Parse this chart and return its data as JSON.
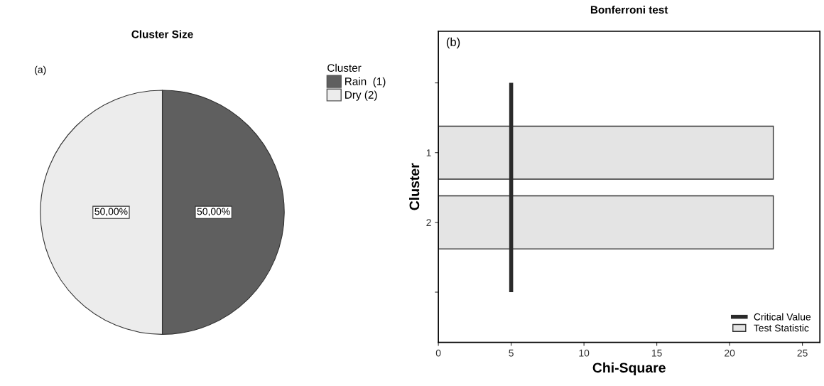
{
  "chart_data": [
    {
      "type": "pie",
      "title": "Cluster Size",
      "legend_title": "Cluster",
      "legend": "right",
      "categories": [
        "Rain  (1)",
        "Dry (2)"
      ],
      "values": [
        50,
        50
      ],
      "colors": [
        "#5f5f5f",
        "#ececec"
      ],
      "value_labels": [
        "50,00%",
        "50,00%"
      ],
      "annotations": [
        "(a)"
      ]
    },
    {
      "type": "bar",
      "orientation": "horizontal",
      "title": "Bonferroni test",
      "xlabel": "Chi-Square",
      "ylabel": "Cluster",
      "categories": [
        null,
        "1",
        "2",
        null
      ],
      "series": [
        {
          "name": "Test Statistic",
          "color": "#e4e4e4",
          "values": [
            null,
            23,
            23,
            null
          ]
        }
      ],
      "xlim": [
        0,
        26.2
      ],
      "xticks": [
        0,
        5,
        10,
        15,
        20,
        25
      ],
      "grid": false,
      "legend": "bottom right",
      "ref_lines": [
        {
          "axis": "x",
          "value": 5,
          "label": "Critical Value",
          "color": "#2a2a2a"
        }
      ],
      "annotations": [
        "(b)"
      ]
    }
  ]
}
